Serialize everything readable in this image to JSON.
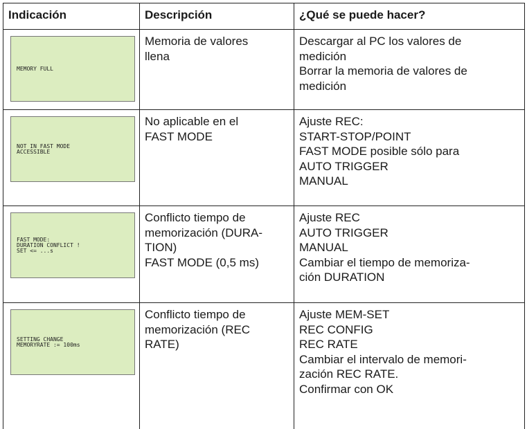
{
  "table": {
    "header": [
      "Indicación",
      "Descripción",
      "¿Qué se puede hacer?"
    ],
    "rows": [
      {
        "lcd": [
          "MEMORY FULL"
        ],
        "description": [
          "Memoria de valores",
          "llena"
        ],
        "actions": [
          "Descargar al PC los valores de",
          "medición",
          "Borrar la memoria de valores de",
          "medición"
        ]
      },
      {
        "lcd": [
          "NOT IN FAST MODE",
          "ACCESSIBLE"
        ],
        "description": [
          "No aplicable en el",
          "FAST MODE"
        ],
        "actions": [
          "Ajuste REC:",
          "START-STOP/POINT",
          "FAST MODE posible sólo para",
          "AUTO TRIGGER",
          "MANUAL"
        ]
      },
      {
        "lcd": [
          "FAST MODE:",
          "DURATION CONFLICT !",
          "SET <= ...s"
        ],
        "description": [
          "Conflicto tiempo de",
          "memorización (DURA-",
          "TION)",
          "FAST MODE (0,5 ms)"
        ],
        "actions": [
          "Ajuste REC",
          "AUTO TRIGGER",
          "MANUAL",
          "Cambiar el tiempo de memoriza-",
          "ción DURATION"
        ]
      },
      {
        "lcd": [
          "SETTING CHANGE",
          "MEMORYRATE := 100ms"
        ],
        "description": [
          "Conflicto tiempo de",
          "memorización (REC",
          "RATE)"
        ],
        "actions": [
          "Ajuste MEM-SET",
          "REC CONFIG",
          "REC RATE",
          "Cambiar el intervalo de memori-",
          "zación REC RATE.",
          "Confirmar con OK"
        ]
      }
    ]
  }
}
